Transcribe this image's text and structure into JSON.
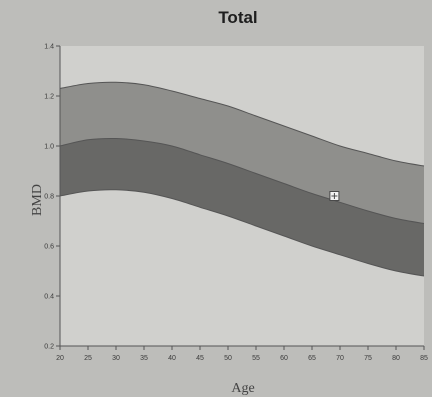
{
  "chart_data": {
    "type": "area",
    "title": "Total",
    "xlabel": "Age",
    "ylabel": "BMD",
    "xlim": [
      20,
      85
    ],
    "ylim": [
      0.2,
      1.4
    ],
    "x_ticks": [
      20,
      25,
      30,
      35,
      40,
      45,
      50,
      55,
      60,
      65,
      70,
      75,
      80,
      85
    ],
    "y_ticks": [
      0.2,
      0.4,
      0.6,
      0.8,
      1.0,
      1.2,
      1.4
    ],
    "y_tick_labels": [
      "0.2",
      "0.4",
      "0.6",
      "0.8",
      "1.0",
      "1.2",
      "1.4"
    ],
    "grid": false,
    "bands": {
      "x": [
        20,
        25,
        30,
        35,
        40,
        45,
        50,
        55,
        60,
        65,
        70,
        75,
        80,
        85
      ],
      "upper": [
        1.23,
        1.25,
        1.255,
        1.245,
        1.22,
        1.19,
        1.16,
        1.12,
        1.08,
        1.04,
        1.0,
        0.97,
        0.94,
        0.92
      ],
      "middle": [
        1.0,
        1.025,
        1.03,
        1.02,
        1.0,
        0.965,
        0.93,
        0.89,
        0.85,
        0.81,
        0.775,
        0.74,
        0.71,
        0.69
      ],
      "lower": [
        0.8,
        0.82,
        0.825,
        0.815,
        0.79,
        0.755,
        0.72,
        0.68,
        0.64,
        0.6,
        0.565,
        0.53,
        0.5,
        0.48
      ]
    },
    "points": [
      {
        "x": 69,
        "y": 0.8
      }
    ]
  },
  "colors": {
    "page_bg": "#bdbdba",
    "plot_bg": "#d0d0cd",
    "upper_band": "#8f8f8c",
    "lower_band": "#686866",
    "band_edge": "#555555",
    "axis": "#555555",
    "point": "#f2f2f2"
  }
}
